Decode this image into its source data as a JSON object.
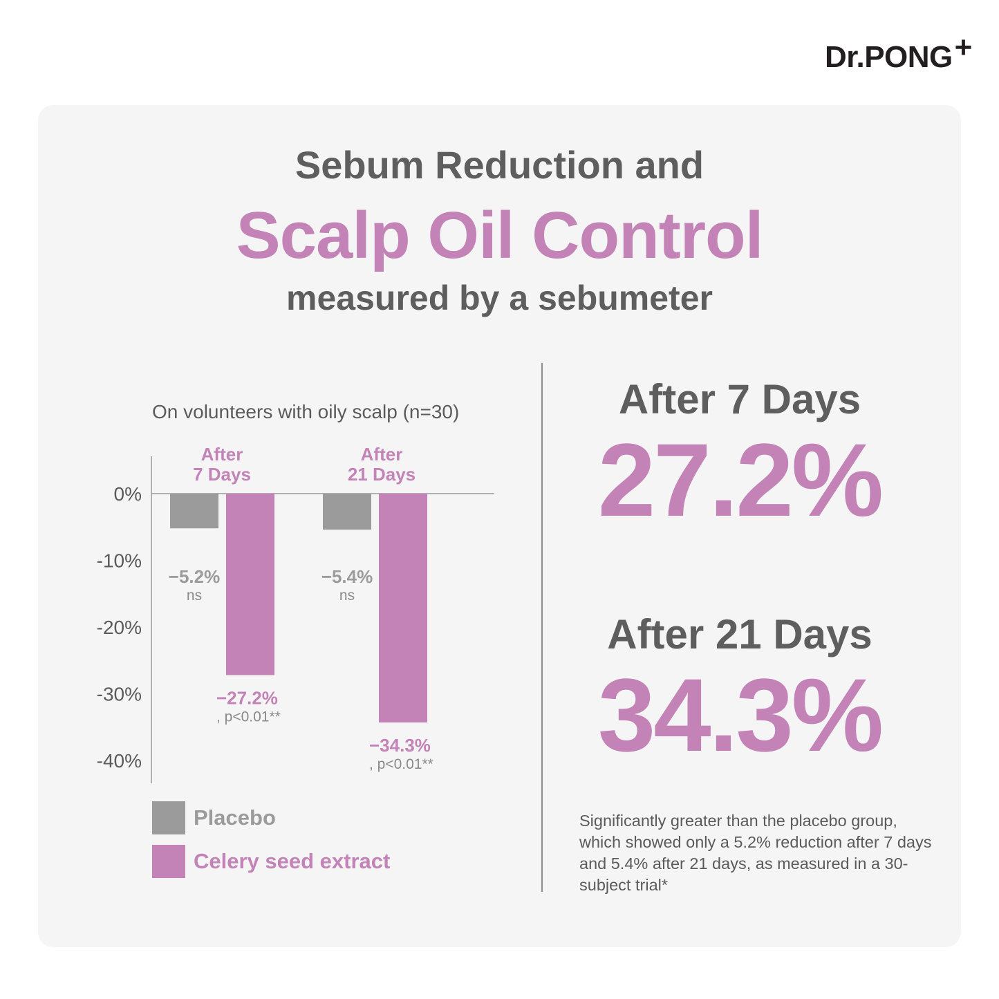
{
  "logo": {
    "text": "Dr.PONG",
    "plus": "+"
  },
  "title": {
    "line1": "Sebum Reduction and",
    "line2": "Scalp Oil Control",
    "line3": "measured by a sebumeter"
  },
  "chart_subtitle": "On volunteers with oily scalp (n=30)",
  "colors": {
    "placebo": "#9b9b9b",
    "extract": "#c383b7",
    "text_gray": "#5e5e5e"
  },
  "chart_data": {
    "type": "bar",
    "title": "On volunteers with oily scalp (n=30)",
    "categories": [
      "After\n7 Days",
      "After\n21 Days"
    ],
    "series": [
      {
        "name": "Placebo",
        "values": [
          -5.2,
          -5.4
        ],
        "labels": [
          "−5.2%",
          "−5.4%"
        ],
        "notes": [
          "ns",
          "ns"
        ]
      },
      {
        "name": "Celery seed extract",
        "values": [
          -27.2,
          -34.3
        ],
        "labels": [
          "−27.2%",
          "−34.3%"
        ],
        "notes": [
          ", p<0.01**",
          ", p<0.01**"
        ]
      }
    ],
    "yticks": [
      "0%",
      "-10%",
      "-20%",
      "-30%",
      "-40%"
    ],
    "ytick_values": [
      0,
      -10,
      -20,
      -30,
      -40
    ],
    "ylim": [
      -43,
      5
    ],
    "legend_position": "bottom-left",
    "grid": false
  },
  "legend": [
    {
      "label": "Placebo"
    },
    {
      "label": "Celery seed extract"
    }
  ],
  "highlights": [
    {
      "heading": "After 7 Days",
      "value": "27.2%"
    },
    {
      "heading": "After 21 Days",
      "value": "34.3%"
    }
  ],
  "footnote": "Significantly greater than the placebo group, which showed only a 5.2% reduction after 7 days and 5.4% after 21 days, as measured in a 30-subject trial*"
}
